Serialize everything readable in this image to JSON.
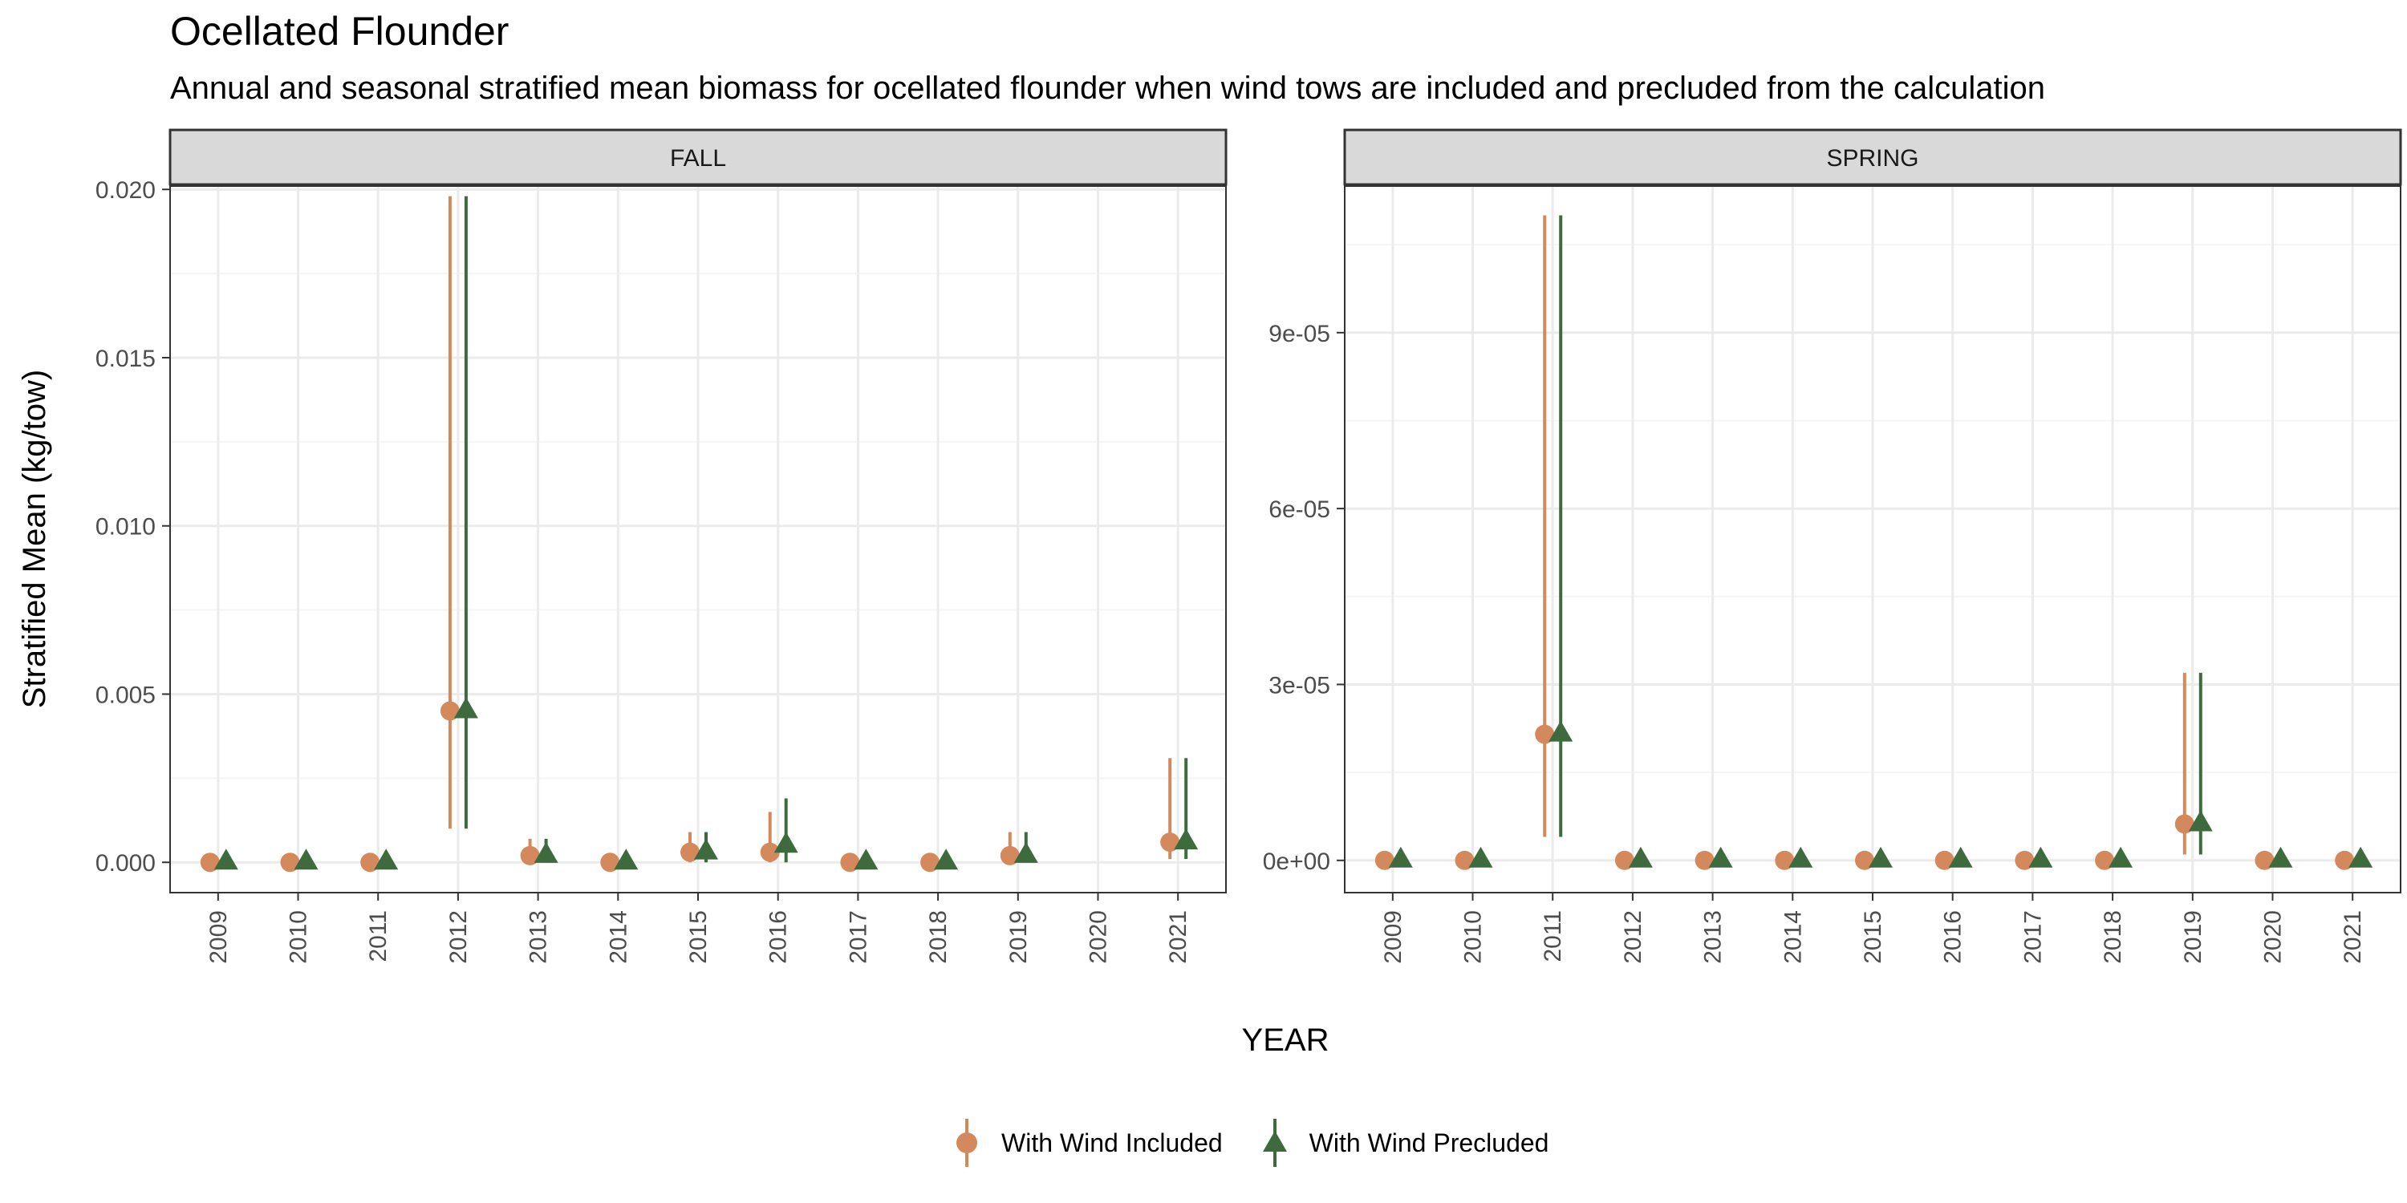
{
  "title": "Ocellated Flounder",
  "subtitle": "Annual and seasonal stratified mean biomass for ocellated flounder when wind tows are included and precluded from the calculation",
  "colors": {
    "included": "#D4895C",
    "precluded": "#3D6B3D",
    "strip": "#D9D9D9",
    "grid_major": "#EBEBEB",
    "grid_minor": "#F5F5F5",
    "axis_text": "#4D4D4D"
  },
  "legend": {
    "included_label": "With Wind Included",
    "precluded_label": "With Wind Precluded"
  },
  "chart_data": {
    "type": "scatter",
    "xlabel": "YEAR",
    "ylabel": "Stratified Mean (kg/tow)",
    "panels": [
      {
        "name": "FALL",
        "ylim": [
          -0.0009,
          0.0201
        ],
        "yticks": [
          0,
          0.005,
          0.01,
          0.015,
          0.02
        ],
        "yticklabels": [
          "0.000",
          "0.005",
          "0.010",
          "0.015",
          "0.020"
        ],
        "years": [
          2009,
          2010,
          2011,
          2012,
          2013,
          2014,
          2015,
          2016,
          2017,
          2018,
          2019,
          2020,
          2021
        ],
        "series": [
          {
            "name": "With Wind Included",
            "mean": [
              0,
              0,
              0,
              0.0045,
              0.0002,
              0,
              0.0003,
              0.0003,
              0,
              0,
              0.0002,
              null,
              0.0006
            ],
            "lower": [
              0,
              0,
              0,
              0.001,
              0,
              0,
              0,
              0,
              0,
              0,
              0,
              null,
              0.0001
            ],
            "upper": [
              0,
              0,
              0,
              0.0198,
              0.0007,
              0,
              0.0009,
              0.0015,
              0,
              0,
              0.0009,
              null,
              0.0031
            ]
          },
          {
            "name": "With Wind Precluded",
            "mean": [
              0,
              0,
              0,
              0.0045,
              0.0002,
              0,
              0.0003,
              0.0005,
              0,
              0,
              0.0002,
              null,
              0.0006
            ],
            "lower": [
              0,
              0,
              0,
              0.001,
              0,
              0,
              0,
              0,
              0,
              0,
              0,
              null,
              0.0001
            ],
            "upper": [
              0,
              0,
              0,
              0.0198,
              0.0007,
              0,
              0.0009,
              0.0019,
              0,
              0,
              0.0009,
              null,
              0.0031
            ]
          }
        ]
      },
      {
        "name": "SPRING",
        "ylim": [
          -5.5e-06,
          0.000115
        ],
        "yticks": [
          0,
          3e-05,
          6e-05,
          9e-05
        ],
        "yticklabels": [
          "0e+00",
          "3e-05",
          "6e-05",
          "9e-05"
        ],
        "years": [
          2009,
          2010,
          2011,
          2012,
          2013,
          2014,
          2015,
          2016,
          2017,
          2018,
          2019,
          2020,
          2021
        ],
        "series": [
          {
            "name": "With Wind Included",
            "mean": [
              0,
              0,
              2.15e-05,
              0,
              0,
              0,
              0,
              0,
              0,
              0,
              6.2e-06,
              0,
              0
            ],
            "lower": [
              0,
              0,
              4e-06,
              0,
              0,
              0,
              0,
              0,
              0,
              0,
              1e-06,
              0,
              0
            ],
            "upper": [
              0,
              0,
              0.00011,
              0,
              0,
              0,
              0,
              0,
              0,
              0,
              3.2e-05,
              0,
              0
            ]
          },
          {
            "name": "With Wind Precluded",
            "mean": [
              0,
              0,
              2.15e-05,
              0,
              0,
              0,
              0,
              0,
              0,
              0,
              6.2e-06,
              0,
              0
            ],
            "lower": [
              0,
              0,
              4e-06,
              0,
              0,
              0,
              0,
              0,
              0,
              0,
              1e-06,
              0,
              0
            ],
            "upper": [
              0,
              0,
              0.00011,
              0,
              0,
              0,
              0,
              0,
              0,
              0,
              3.2e-05,
              0,
              0
            ]
          }
        ]
      }
    ]
  }
}
